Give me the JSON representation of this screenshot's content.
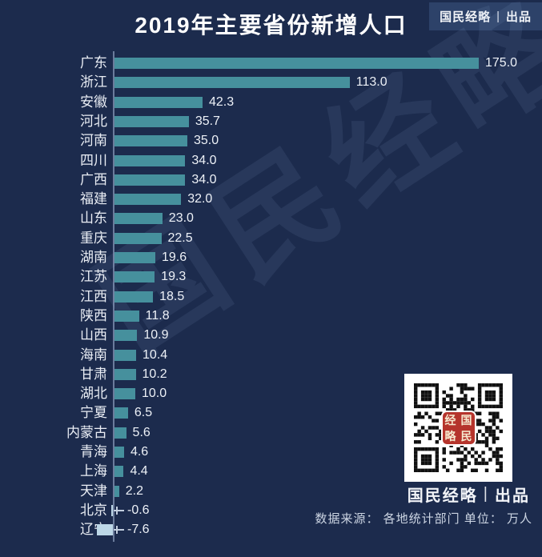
{
  "watermark": "国民经略",
  "brand": {
    "name": "国民经略",
    "divider": "|",
    "suffix": "出品"
  },
  "footer": {
    "source_line": "数据来源： 各地统计部门 单位： 万人"
  },
  "qr": {
    "logo_chars": [
      "经",
      "国",
      "略",
      "民"
    ]
  },
  "colors": {
    "background": "#1c2b4d",
    "bar": "#46909d",
    "bar_negative": "#bdd7e7",
    "axis": "#8ea0bf",
    "badge_background": "#2d4269",
    "qr_logo_red": "#b5342c",
    "text_primary": "#f2f4f8",
    "text_secondary": "#ccd5e3"
  },
  "chart_data": {
    "type": "bar",
    "orientation": "horizontal",
    "title": "2019年主要省份新增人口",
    "unit": "万人",
    "source": "各地统计部门",
    "grid": false,
    "legend": false,
    "value_labels_shown": true,
    "xlim": [
      -10,
      185
    ],
    "categories": [
      "广东",
      "浙江",
      "安徽",
      "河北",
      "河南",
      "四川",
      "广西",
      "福建",
      "山东",
      "重庆",
      "湖南",
      "江苏",
      "江西",
      "陕西",
      "山西",
      "海南",
      "甘肃",
      "湖北",
      "宁夏",
      "内蒙古",
      "青海",
      "上海",
      "天津",
      "北京",
      "辽宁"
    ],
    "values": [
      175.0,
      113.0,
      42.3,
      35.7,
      35.0,
      34.0,
      34.0,
      32.0,
      23.0,
      22.5,
      19.6,
      19.3,
      18.5,
      11.8,
      10.9,
      10.4,
      10.2,
      10.0,
      6.5,
      5.6,
      4.6,
      4.4,
      2.2,
      -0.6,
      -7.6
    ],
    "labels": [
      "175.0",
      "113.0",
      "42.3",
      "35.7",
      "35.0",
      "34.0",
      "34.0",
      "32.0",
      "23.0",
      "22.5",
      "19.6",
      "19.3",
      "18.5",
      "11.8",
      "10.9",
      "10.4",
      "10.2",
      "10.0",
      "6.5",
      "5.6",
      "4.6",
      "4.4",
      "2.2",
      "-0.6",
      "-7.6"
    ]
  }
}
